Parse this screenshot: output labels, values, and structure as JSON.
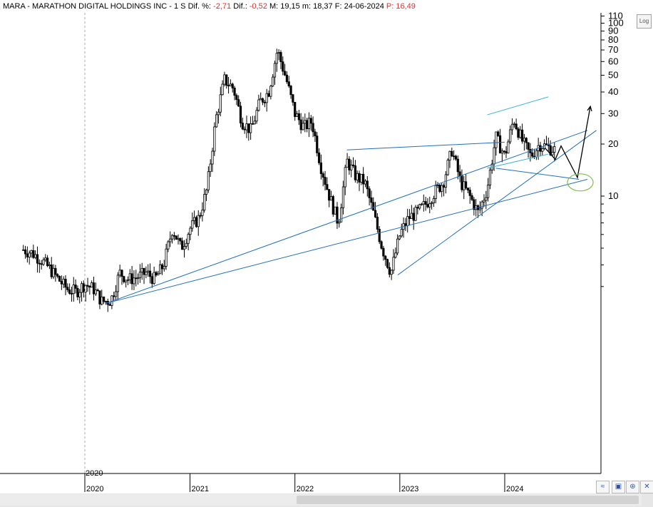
{
  "header": {
    "symbol": "MARA - MARATHON DIGITAL HOLDINGS INC -",
    "interval": "1 S",
    "dif_pct_label": "Dif. %:",
    "dif_pct_value": "-2,71",
    "dif_label": "Dif.:",
    "dif_value": "-0,52",
    "max_label": "M:",
    "max_value": "19,15",
    "min_label": "m:",
    "min_value": "18,37",
    "date_label": "F:",
    "date_value": "24-06-2024",
    "price_label": "P:",
    "price_value": "16,49"
  },
  "scale_button": "Log",
  "colors": {
    "candle": "#000000",
    "trendline": "#1f6fbf",
    "channel": "#36b0d8",
    "projection": "#000000",
    "target_ellipse": "#7cc04a",
    "positive": "#000000",
    "negative": "#e03030"
  },
  "icons": {
    "zoom": "zigzag-icon",
    "save": "save-icon",
    "pin": "pin-icon"
  },
  "chart_data": {
    "type": "candlestick",
    "scale": "log",
    "ylim": [
      2.2,
      115
    ],
    "y_ticks": [
      10,
      20,
      30,
      40,
      50,
      60,
      70,
      80,
      90,
      100,
      110
    ],
    "x_ticks": [
      "2020",
      "2021",
      "2022",
      "2023",
      "2024"
    ],
    "extra_x_label": "2020",
    "grid": false,
    "legend": "none",
    "series": [
      {
        "values": [
          [
            "2019-06-01",
            4.9
          ],
          [
            "2019-07-01",
            4.7
          ],
          [
            "2019-08-01",
            4.3
          ],
          [
            "2019-09-01",
            3.8
          ],
          [
            "2019-10-01",
            3.3
          ],
          [
            "2019-11-01",
            2.9
          ],
          [
            "2019-12-01",
            2.8
          ],
          [
            "2020-01-01",
            3.1
          ],
          [
            "2020-02-01",
            2.9
          ],
          [
            "2020-03-01",
            2.45
          ],
          [
            "2020-04-01",
            2.5
          ],
          [
            "2020-05-01",
            3.6
          ],
          [
            "2020-06-01",
            3.3
          ],
          [
            "2020-07-01",
            3.4
          ],
          [
            "2020-08-01",
            3.6
          ],
          [
            "2020-09-01",
            3.3
          ],
          [
            "2020-10-01",
            4.0
          ],
          [
            "2020-11-01",
            6.5
          ],
          [
            "2020-12-01",
            5.0
          ],
          [
            "2021-01-01",
            6.5
          ],
          [
            "2021-02-01",
            7.5
          ],
          [
            "2021-03-01",
            11.0
          ],
          [
            "2021-04-01",
            28.0
          ],
          [
            "2021-05-01",
            47.0
          ],
          [
            "2021-06-01",
            42.0
          ],
          [
            "2021-07-01",
            27.0
          ],
          [
            "2021-08-01",
            24.0
          ],
          [
            "2021-09-01",
            35.0
          ],
          [
            "2021-10-01",
            40.0
          ],
          [
            "2021-11-01",
            70.0
          ],
          [
            "2021-12-01",
            48.0
          ],
          [
            "2022-01-01",
            30.0
          ],
          [
            "2022-02-01",
            25.0
          ],
          [
            "2022-03-01",
            27.0
          ],
          [
            "2022-04-01",
            15.0
          ],
          [
            "2022-05-01",
            10.0
          ],
          [
            "2022-06-01",
            7.0
          ],
          [
            "2022-07-01",
            16.0
          ],
          [
            "2022-08-01",
            13.0
          ],
          [
            "2022-09-01",
            12.0
          ],
          [
            "2022-10-01",
            8.0
          ],
          [
            "2022-11-01",
            5.0
          ],
          [
            "2022-12-01",
            3.6
          ],
          [
            "2023-01-01",
            6.0
          ],
          [
            "2023-02-01",
            7.5
          ],
          [
            "2023-03-01",
            8.0
          ],
          [
            "2023-04-01",
            9.0
          ],
          [
            "2023-05-01",
            10.5
          ],
          [
            "2023-06-01",
            12.0
          ],
          [
            "2023-07-01",
            18.5
          ],
          [
            "2023-08-01",
            12.0
          ],
          [
            "2023-09-01",
            10.0
          ],
          [
            "2023-10-01",
            8.0
          ],
          [
            "2023-11-01",
            11.0
          ],
          [
            "2023-12-01",
            22.0
          ],
          [
            "2024-01-01",
            17.0
          ],
          [
            "2024-02-01",
            28.0
          ],
          [
            "2024-03-01",
            21.0
          ],
          [
            "2024-04-01",
            17.0
          ],
          [
            "2024-05-01",
            20.0
          ],
          [
            "2024-06-24",
            18.5
          ]
        ]
      }
    ],
    "annotations": {
      "trendlines": [
        {
          "from": [
            "2020-03-15",
            2.4
          ],
          "to": [
            "2024-10-15",
            24.0
          ]
        },
        {
          "from": [
            "2022-12-25",
            3.5
          ],
          "to": [
            "2024-11-15",
            24.0
          ]
        },
        {
          "from": [
            "2020-03-15",
            2.4
          ],
          "to": [
            "2024-10-15",
            12.5
          ]
        },
        {
          "from": [
            "2022-07-01",
            18.5
          ],
          "to": [
            "2024-01-01",
            20.5
          ]
        },
        {
          "from": [
            "2023-12-01",
            14.5
          ],
          "to": [
            "2024-09-15",
            12.5
          ]
        }
      ],
      "channel": [
        {
          "from": [
            "2023-11-01",
            29.5
          ],
          "to": [
            "2024-06-01",
            37.5
          ]
        },
        {
          "from": [
            "2023-11-01",
            14.5
          ],
          "to": [
            "2024-06-01",
            17.5
          ]
        }
      ],
      "projection": [
        [
          "2024-05-20",
          19.0
        ],
        [
          "2024-06-25",
          16.3
        ],
        [
          "2024-07-15",
          19.5
        ],
        [
          "2024-09-10",
          12.8
        ],
        [
          "2024-10-25",
          33.0
        ]
      ],
      "target_zone": {
        "date": "2024-09-20",
        "value": 12.0
      }
    }
  }
}
